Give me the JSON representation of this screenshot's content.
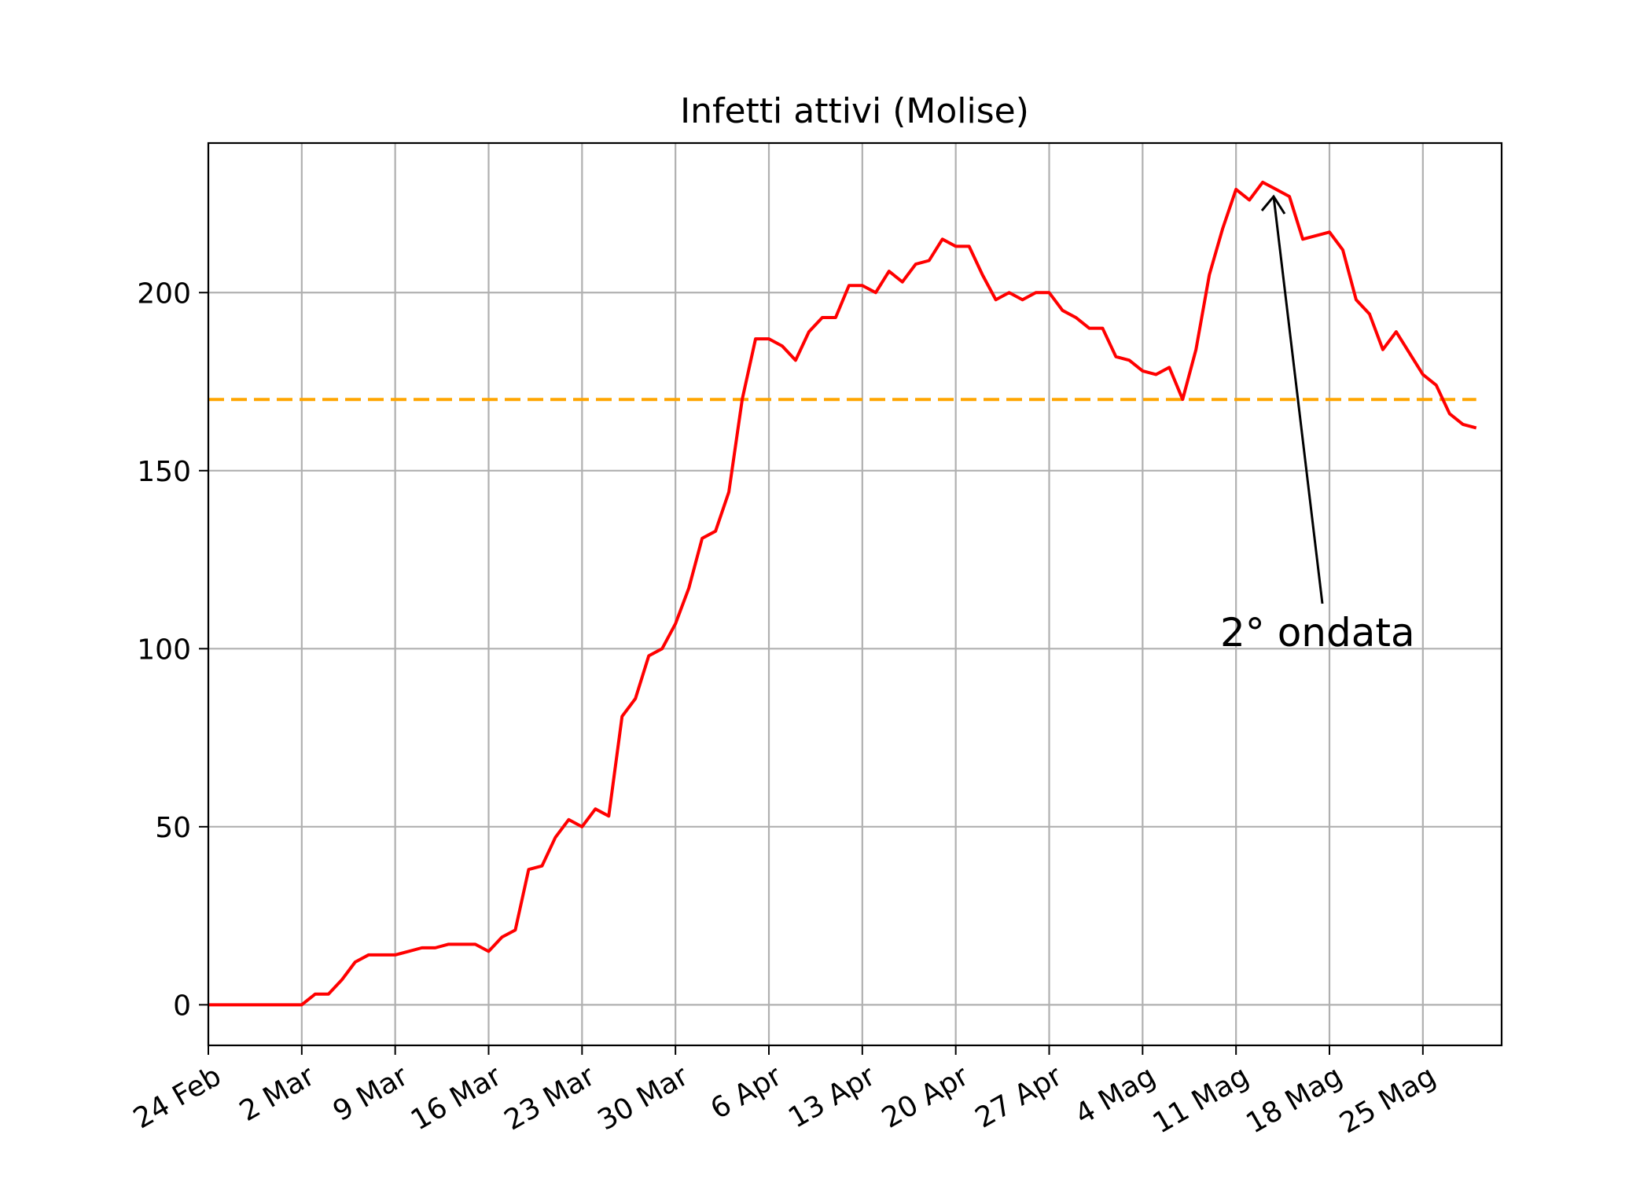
{
  "chart_data": {
    "type": "line",
    "title": "Infetti attivi (Molise)",
    "xlabel": "",
    "ylabel": "",
    "x_start": "24 Feb",
    "x_step": "1 day",
    "xlim": [
      0,
      96.9
    ],
    "ylim": [
      -11.4,
      242
    ],
    "yticks": [
      0,
      50,
      100,
      150,
      200
    ],
    "xticks": [
      {
        "day": 0,
        "label": "24 Feb"
      },
      {
        "day": 7,
        "label": "2 Mar"
      },
      {
        "day": 14,
        "label": "9 Mar"
      },
      {
        "day": 21,
        "label": "16 Mar"
      },
      {
        "day": 28,
        "label": "23 Mar"
      },
      {
        "day": 35,
        "label": "30 Mar"
      },
      {
        "day": 42,
        "label": "6 Apr"
      },
      {
        "day": 49,
        "label": "13 Apr"
      },
      {
        "day": 56,
        "label": "20 Apr"
      },
      {
        "day": 63,
        "label": "27 Apr"
      },
      {
        "day": 70,
        "label": "4 Mag"
      },
      {
        "day": 77,
        "label": "11 Mag"
      },
      {
        "day": 84,
        "label": "18 Mag"
      },
      {
        "day": 91,
        "label": "25 Mag"
      }
    ],
    "grid": true,
    "series": [
      {
        "color": "#ff0000",
        "values": [
          0,
          0,
          0,
          0,
          0,
          0,
          0,
          0,
          3,
          3,
          7,
          12,
          14,
          14,
          14,
          15,
          16,
          16,
          17,
          17,
          17,
          15,
          19,
          21,
          38,
          39,
          47,
          52,
          50,
          55,
          53,
          81,
          86,
          98,
          100,
          107,
          117,
          131,
          133,
          144,
          170,
          187,
          187,
          185,
          181,
          189,
          193,
          193,
          202,
          202,
          200,
          206,
          203,
          208,
          209,
          215,
          213,
          213,
          205,
          198,
          200,
          198,
          200,
          200,
          195,
          193,
          190,
          190,
          182,
          181,
          178,
          177,
          179,
          170,
          184,
          205,
          218,
          229,
          226,
          231,
          229,
          227,
          215,
          216,
          217,
          212,
          198,
          194,
          184,
          189,
          183,
          177,
          174,
          166,
          163,
          162
        ]
      }
    ],
    "reference_line": {
      "y": 170,
      "color": "#ffa500",
      "style": "dashed"
    },
    "annotation": {
      "text": "2° ondata",
      "arrow_target_day": 79
    }
  }
}
